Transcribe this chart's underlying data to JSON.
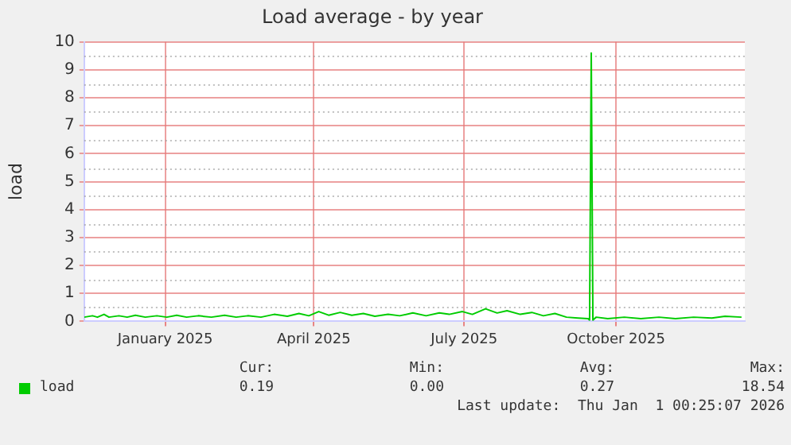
{
  "chart_data": {
    "type": "line",
    "title": "Load average - by year",
    "ylabel": "load",
    "x": [
      "2024-11-27",
      "2024-12-02",
      "2024-12-05",
      "2024-12-09",
      "2024-12-12",
      "2024-12-18",
      "2024-12-23",
      "2024-12-28",
      "2025-01-03",
      "2025-01-10",
      "2025-01-16",
      "2025-01-22",
      "2025-01-28",
      "2025-02-04",
      "2025-02-12",
      "2025-02-20",
      "2025-02-27",
      "2025-03-06",
      "2025-03-14",
      "2025-03-22",
      "2025-03-30",
      "2025-04-06",
      "2025-04-12",
      "2025-04-18",
      "2025-04-24",
      "2025-05-01",
      "2025-05-08",
      "2025-05-15",
      "2025-05-22",
      "2025-05-30",
      "2025-06-06",
      "2025-06-14",
      "2025-06-22",
      "2025-06-30",
      "2025-07-06",
      "2025-07-14",
      "2025-07-20",
      "2025-07-28",
      "2025-08-04",
      "2025-08-10",
      "2025-08-18",
      "2025-08-25",
      "2025-09-01",
      "2025-09-08",
      "2025-09-15",
      "2025-09-22",
      "2025-09-28",
      "2025-09-29",
      "2025-09-30",
      "2025-10-01",
      "2025-10-03",
      "2025-10-10",
      "2025-10-20",
      "2025-10-30",
      "2025-11-10",
      "2025-11-20",
      "2025-12-01",
      "2025-12-12",
      "2025-12-20",
      "2025-12-30"
    ],
    "series": [
      {
        "name": "load",
        "color": "#00cc00",
        "values": [
          0.15,
          0.2,
          0.15,
          0.25,
          0.15,
          0.2,
          0.15,
          0.22,
          0.15,
          0.2,
          0.15,
          0.22,
          0.15,
          0.2,
          0.15,
          0.22,
          0.15,
          0.2,
          0.15,
          0.25,
          0.18,
          0.28,
          0.2,
          0.35,
          0.22,
          0.32,
          0.22,
          0.28,
          0.18,
          0.25,
          0.2,
          0.3,
          0.2,
          0.3,
          0.25,
          0.35,
          0.25,
          0.45,
          0.3,
          0.38,
          0.25,
          0.32,
          0.2,
          0.28,
          0.15,
          0.12,
          0.1,
          0.05,
          9.6,
          0.05,
          0.15,
          0.1,
          0.15,
          0.1,
          0.15,
          0.1,
          0.15,
          0.12,
          0.18,
          0.15
        ]
      }
    ],
    "xlim": [
      "2024-11-27",
      "2026-01-01"
    ],
    "xticks": [
      {
        "value": "2025-01-15",
        "label": "January 2025"
      },
      {
        "value": "2025-04-15",
        "label": "April 2025"
      },
      {
        "value": "2025-07-15",
        "label": "July 2025"
      },
      {
        "value": "2025-10-15",
        "label": "October 2025"
      }
    ],
    "ylim": [
      0,
      10
    ],
    "yticks": [
      0,
      1,
      2,
      3,
      4,
      5,
      6,
      7,
      8,
      9,
      10
    ],
    "grid": true,
    "legend": "bottom left",
    "marker": "none",
    "line_style": "solid",
    "annotations": [
      "Cur:",
      "Min:",
      "Avg:",
      "Max:",
      "0.19",
      "0.00",
      "0.27",
      "18.54",
      "Last update:  Thu Jan  1 00:25:07 2026"
    ]
  }
}
